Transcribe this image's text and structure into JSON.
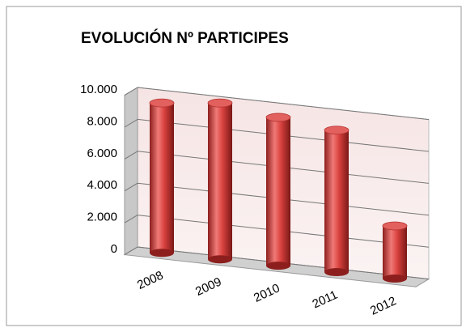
{
  "chart_data": {
    "type": "bar",
    "title": "EVOLUCIÓN Nº PARTICIPES",
    "categories": [
      "2008",
      "2009",
      "2010",
      "2011",
      "2012"
    ],
    "values": [
      9400,
      9800,
      9300,
      8900,
      3300
    ],
    "color": "#d9423f",
    "ylim": [
      0,
      10000
    ],
    "yticks": [
      0,
      {
        "value": 2000,
        "label": "2.000"
      },
      {
        "value": 4000,
        "label": "4.000"
      },
      {
        "value": 6000,
        "label": "6.000"
      },
      {
        "value": 8000,
        "label": "8.000"
      },
      {
        "value": 10000,
        "label": "10.000"
      }
    ],
    "grid": true
  }
}
